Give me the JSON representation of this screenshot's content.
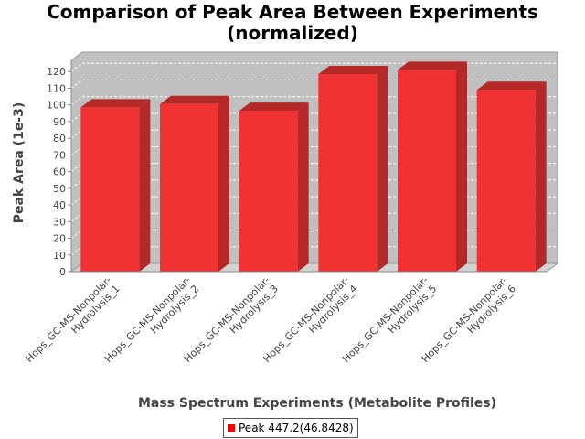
{
  "chart_data": {
    "type": "bar",
    "title_lines": [
      "Comparison of Peak Area Between Experiments",
      "(normalized)"
    ],
    "xlabel": "Mass Spectrum Experiments (Metabolite Profiles)",
    "ylabel": "Peak Area (1e-3)",
    "ylim": [
      0,
      120
    ],
    "yticks": [
      0,
      10,
      20,
      30,
      40,
      50,
      60,
      70,
      80,
      90,
      100,
      110,
      120
    ],
    "categories": [
      "Hops_GC-MS-Nonpolar-Hydrolysis_1",
      "Hops_GC-MS-Nonpolar-Hydrolysis_2",
      "Hops_GC-MS-Nonpolar-Hydrolysis_3",
      "Hops_GC-MS-Nonpolar-Hydrolysis_4",
      "Hops_GC-MS-Nonpolar-Hydrolysis_5",
      "Hops_GC-MS-Nonpolar-Hydrolysis_6"
    ],
    "category_label_lines": [
      [
        "Hops_GC-MS-Nonpolar-",
        "Hydrolysis_1"
      ],
      [
        "Hops_GC-MS-Nonpolar-",
        "Hydrolysis_2"
      ],
      [
        "Hops_GC-MS-Nonpolar-",
        "Hydrolysis_3"
      ],
      [
        "Hops_GC-MS-Nonpolar-",
        "Hydrolysis_4"
      ],
      [
        "Hops_GC-MS-Nonpolar-",
        "Hydrolysis_5"
      ],
      [
        "Hops_GC-MS-Nonpolar-",
        "Hydrolysis_6"
      ]
    ],
    "series": [
      {
        "name": "Peak 447.2(46.8428)",
        "values": [
          98.5,
          100.5,
          96.5,
          118.5,
          121.0,
          109.0
        ]
      }
    ],
    "grid": true,
    "legend_position": "bottom",
    "colors": {
      "bar_front": "#f03232",
      "bar_top": "#b42828",
      "bar_side": "#b42828",
      "plot_back": "#c0c0c0",
      "plot_floor": "#d2d2d2",
      "legend_swatch": "#ff0000"
    }
  }
}
